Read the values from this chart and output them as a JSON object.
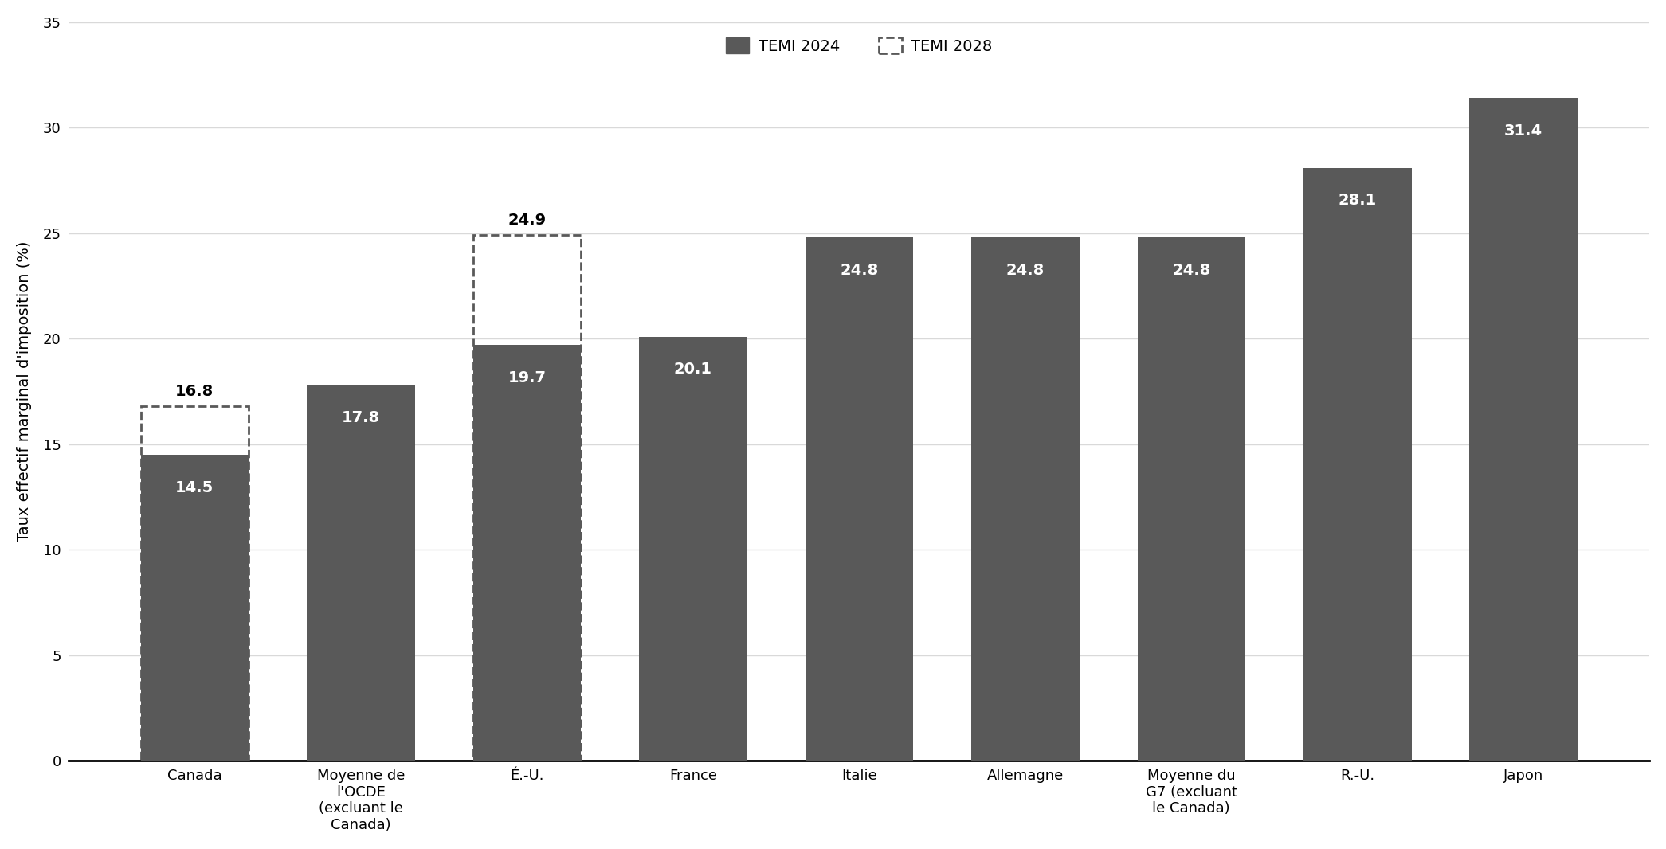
{
  "categories": [
    "Canada",
    "Moyenne de\nl'OCDE\n(excluant le\nCanada)",
    "É.-U.",
    "France",
    "Italie",
    "Allemagne",
    "Moyenne du\nG7 (excluant\nle Canada)",
    "R.-U.",
    "Japon"
  ],
  "values_2024": [
    14.5,
    17.8,
    19.7,
    20.1,
    24.8,
    24.8,
    24.8,
    28.1,
    31.4
  ],
  "values_2028": [
    16.8,
    null,
    24.9,
    null,
    null,
    null,
    null,
    null,
    null
  ],
  "bar_color": "#595959",
  "dashed_color": "#595959",
  "ylabel": "Taux effectif marginal d'imposition (%)",
  "legend_label_2024": "TEMI 2024",
  "legend_label_2028": "TEMI 2028",
  "ylim": [
    0,
    35
  ],
  "yticks": [
    0,
    5,
    10,
    15,
    20,
    25,
    30,
    35
  ],
  "background_color": "#ffffff",
  "grid_color": "#d9d9d9",
  "bar_label_fontsize": 14,
  "axis_label_fontsize": 14,
  "tick_label_fontsize": 13,
  "legend_fontsize": 14
}
